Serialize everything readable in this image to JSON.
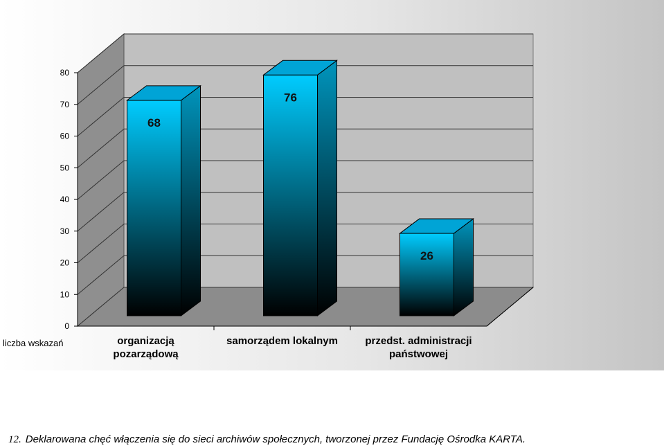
{
  "chart_data": {
    "type": "bar",
    "ylabel": "liczba wskazań",
    "ylim": [
      0,
      80
    ],
    "yticks": [
      0,
      10,
      20,
      30,
      40,
      50,
      60,
      70,
      80
    ],
    "categories": [
      [
        "organizacją",
        "pozarządową"
      ],
      [
        "samorządem lokalnym"
      ],
      [
        "przedst. administracji",
        "państwowej"
      ]
    ],
    "values": [
      68,
      76,
      26
    ],
    "grid": true,
    "three_d": true,
    "bar_color": "#00ccff",
    "bar_dark_color": "#000000",
    "floor_color": "#8c8c8c",
    "wall_color": "#c0c0c0"
  },
  "caption": {
    "number": "12.",
    "text": "Deklarowana chęć włączenia się do sieci archiwów społecznych, tworzonej przez Fundację Ośrodka KARTA."
  }
}
